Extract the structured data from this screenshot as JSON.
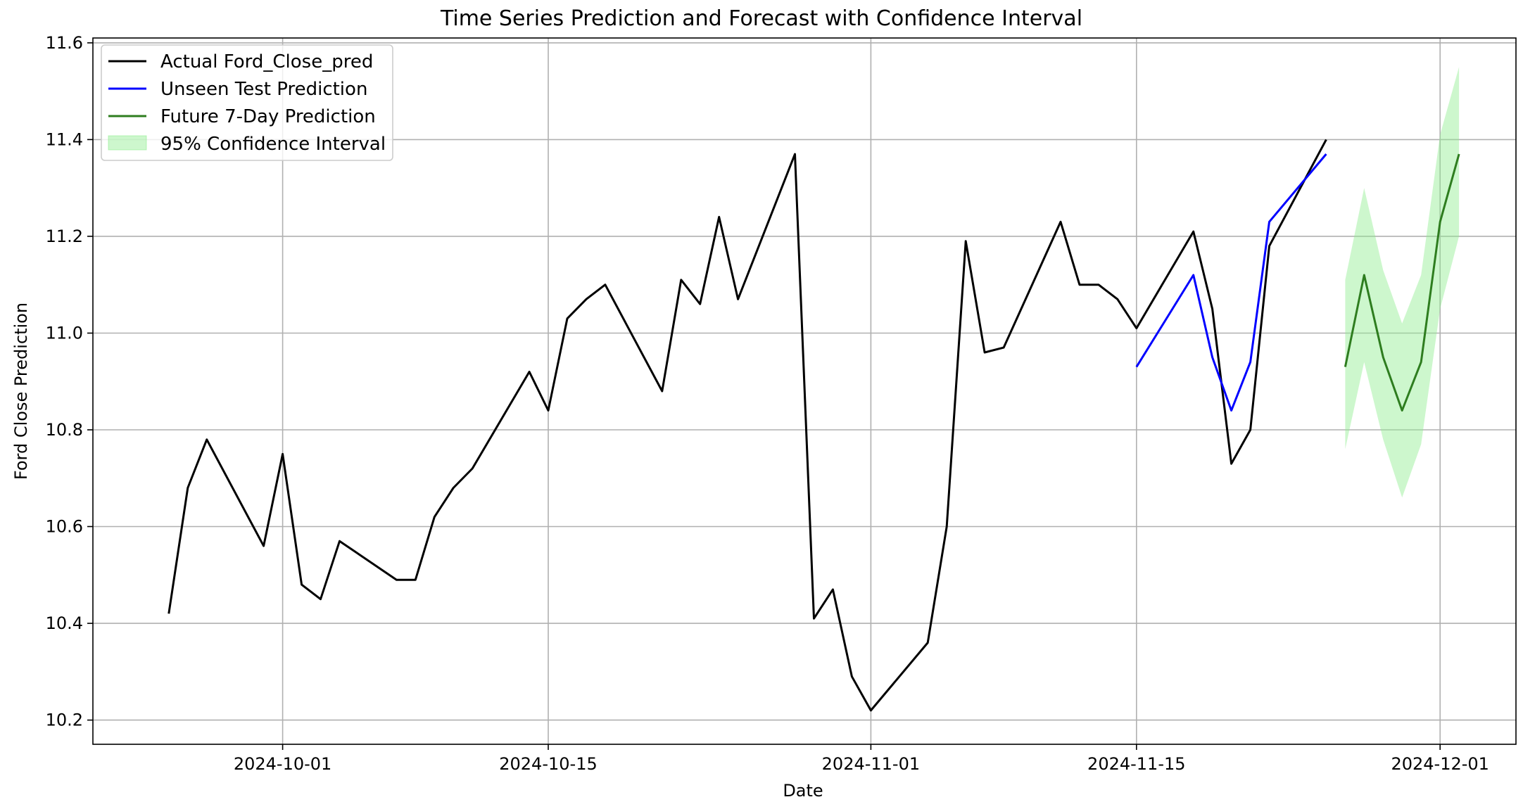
{
  "chart_data": {
    "type": "line",
    "title": "Time Series Prediction and Forecast with Confidence Interval",
    "xlabel": "Date",
    "ylabel": "Ford Close Prediction",
    "xlim": [
      "2024-09-21",
      "2024-12-05"
    ],
    "ylim": [
      10.15,
      11.61
    ],
    "x_ticks": [
      "2024-10-01",
      "2024-10-15",
      "2024-11-01",
      "2024-11-15",
      "2024-12-01"
    ],
    "y_ticks": [
      10.2,
      10.4,
      10.6,
      10.8,
      11.0,
      11.2,
      11.4,
      11.6
    ],
    "grid": true,
    "legend_position": "top-left",
    "series": [
      {
        "name": "Actual Ford_Close_pred",
        "color": "#000000",
        "x": [
          "2024-09-25",
          "2024-09-26",
          "2024-09-27",
          "2024-09-30",
          "2024-10-01",
          "2024-10-02",
          "2024-10-03",
          "2024-10-04",
          "2024-10-07",
          "2024-10-08",
          "2024-10-09",
          "2024-10-10",
          "2024-10-11",
          "2024-10-14",
          "2024-10-15",
          "2024-10-16",
          "2024-10-17",
          "2024-10-18",
          "2024-10-21",
          "2024-10-22",
          "2024-10-23",
          "2024-10-24",
          "2024-10-25",
          "2024-10-28",
          "2024-10-29",
          "2024-10-30",
          "2024-10-31",
          "2024-11-01",
          "2024-11-04",
          "2024-11-05",
          "2024-11-06",
          "2024-11-07",
          "2024-11-08",
          "2024-11-11",
          "2024-11-12",
          "2024-11-13",
          "2024-11-14",
          "2024-11-15",
          "2024-11-18",
          "2024-11-19",
          "2024-11-20",
          "2024-11-21",
          "2024-11-22",
          "2024-11-25"
        ],
        "values": [
          10.42,
          10.68,
          10.78,
          10.56,
          10.75,
          10.48,
          10.45,
          10.57,
          10.49,
          10.49,
          10.62,
          10.68,
          10.72,
          10.92,
          10.84,
          11.03,
          11.07,
          11.1,
          10.88,
          11.11,
          11.06,
          11.24,
          11.07,
          11.37,
          10.41,
          10.47,
          10.29,
          10.22,
          10.36,
          10.6,
          11.19,
          10.96,
          10.97,
          11.23,
          11.1,
          11.1,
          11.07,
          11.01,
          11.21,
          11.05,
          10.73,
          10.8,
          11.18,
          11.4
        ]
      },
      {
        "name": "Unseen Test Prediction",
        "color": "#0000ff",
        "x": [
          "2024-11-15",
          "2024-11-18",
          "2024-11-19",
          "2024-11-20",
          "2024-11-21",
          "2024-11-22",
          "2024-11-25"
        ],
        "values": [
          10.93,
          11.12,
          10.95,
          10.84,
          10.94,
          11.23,
          11.37
        ]
      },
      {
        "name": "Future 7-Day Prediction",
        "color": "#2e7d1f",
        "x": [
          "2024-11-26",
          "2024-11-27",
          "2024-11-28",
          "2024-11-29",
          "2024-11-30",
          "2024-12-01",
          "2024-12-02"
        ],
        "values": [
          10.93,
          11.12,
          10.95,
          10.84,
          10.94,
          11.23,
          11.37
        ],
        "lower": [
          10.76,
          10.94,
          10.78,
          10.66,
          10.77,
          11.05,
          11.2
        ],
        "upper": [
          11.11,
          11.3,
          11.13,
          11.02,
          11.12,
          11.41,
          11.55
        ]
      }
    ],
    "confidence_interval": {
      "name": "95% Confidence Interval",
      "color": "#90ee90"
    }
  }
}
